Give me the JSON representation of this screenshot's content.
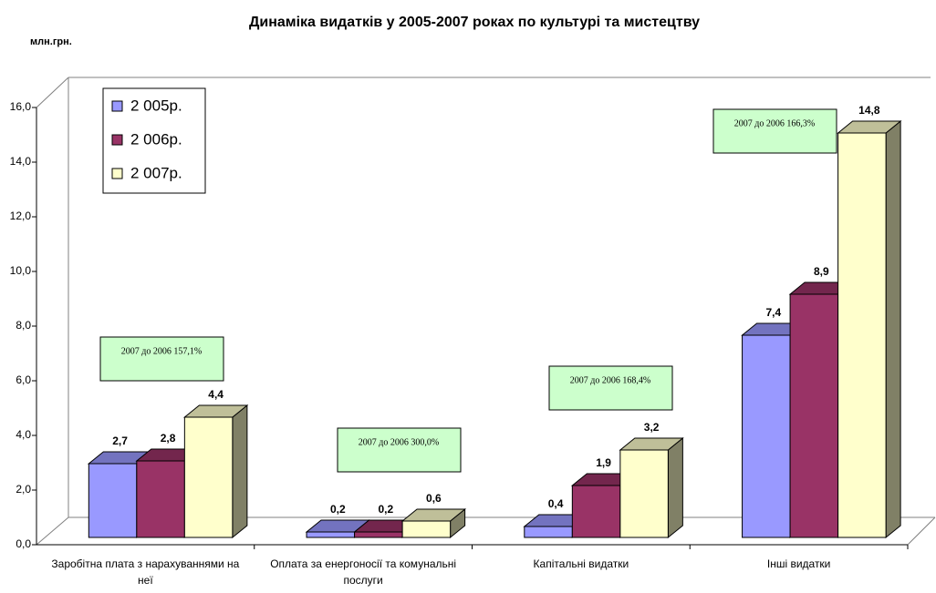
{
  "chart_data": {
    "type": "bar3d",
    "title": "Динаміка видатків у 2005-2007 роках по культурі та мистецтву",
    "y_unit": "млн.грн.",
    "categories": [
      "Заробітна плата з нарахуваннями на неї",
      "Оплата за енергоносії та комунальні послуги",
      "Капітальні видатки",
      "Інші видатки"
    ],
    "series": [
      {
        "name": "2 005р.",
        "color": "#9999ff",
        "values": [
          2.7,
          0.2,
          0.4,
          7.4
        ],
        "value_labels": [
          "2,7",
          "0,2",
          "0,4",
          "7,4"
        ]
      },
      {
        "name": "2 006р.",
        "color": "#993366",
        "values": [
          2.8,
          0.2,
          1.9,
          8.9
        ],
        "value_labels": [
          "2,8",
          "0,2",
          "1,9",
          "8,9"
        ]
      },
      {
        "name": "2 007р.",
        "color": "#ffffcc",
        "values": [
          4.4,
          0.6,
          3.2,
          14.8
        ],
        "value_labels": [
          "4,4",
          "0,6",
          "3,2",
          "14,8"
        ]
      }
    ],
    "ylim": [
      0,
      16
    ],
    "yticks": [
      {
        "value": 0,
        "label": "0,0"
      },
      {
        "value": 2,
        "label": "2,0"
      },
      {
        "value": 4,
        "label": "4,0"
      },
      {
        "value": 6,
        "label": "6,0"
      },
      {
        "value": 8,
        "label": "8,0"
      },
      {
        "value": 10,
        "label": "10,0"
      },
      {
        "value": 12,
        "label": "12,0"
      },
      {
        "value": 14,
        "label": "14,0"
      },
      {
        "value": 16,
        "label": "16,0"
      }
    ],
    "annotations": [
      "2007 до 2006 157,1%",
      "2007 до 2006 300,0%",
      "2007 до 2006 168,4%",
      "2007 до 2006 166,3%"
    ],
    "legend": "upper left"
  }
}
